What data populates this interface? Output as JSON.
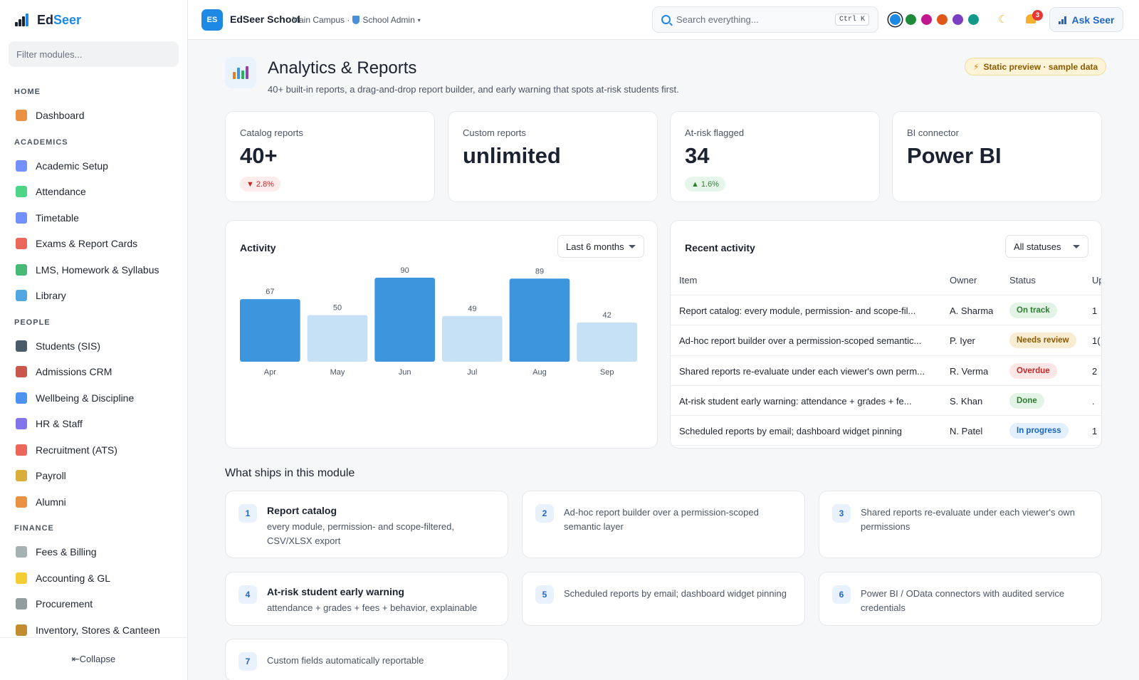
{
  "brand": {
    "name_a": "Ed",
    "name_b": "Seer"
  },
  "sidebar": {
    "filter_placeholder": "Filter modules...",
    "sections": [
      {
        "title": "HOME",
        "items": [
          {
            "label": "Dashboard",
            "icon": "house-icon",
            "color": "#e67e22"
          }
        ]
      },
      {
        "title": "ACADEMICS",
        "items": [
          {
            "label": "Academic Setup",
            "icon": "calendar-icon",
            "color": "#5c7cfa"
          },
          {
            "label": "Attendance",
            "icon": "check-box-icon",
            "color": "#2ecc71"
          },
          {
            "label": "Timetable",
            "icon": "schedule-icon",
            "color": "#5c7cfa"
          },
          {
            "label": "Exams & Report Cards",
            "icon": "memo-icon",
            "color": "#e74c3c"
          },
          {
            "label": "LMS, Homework & Syllabus",
            "icon": "books-icon",
            "color": "#27ae60"
          },
          {
            "label": "Library",
            "icon": "open-book-icon",
            "color": "#3498db"
          }
        ]
      },
      {
        "title": "PEOPLE",
        "items": [
          {
            "label": "Students (SIS)",
            "icon": "graduation-cap-icon",
            "color": "#2c3e50"
          },
          {
            "label": "Admissions CRM",
            "icon": "clipboard-icon",
            "color": "#c0392b"
          },
          {
            "label": "Wellbeing & Discipline",
            "icon": "heart-icon",
            "color": "#2f80ed"
          },
          {
            "label": "HR & Staff",
            "icon": "people-icon",
            "color": "#6c5ce7"
          },
          {
            "label": "Recruitment (ATS)",
            "icon": "magnet-icon",
            "color": "#e74c3c"
          },
          {
            "label": "Payroll",
            "icon": "money-bag-icon",
            "color": "#d4a017"
          },
          {
            "label": "Alumni",
            "icon": "medal-icon",
            "color": "#e67e22"
          }
        ]
      },
      {
        "title": "FINANCE",
        "items": [
          {
            "label": "Fees & Billing",
            "icon": "receipt-icon",
            "color": "#95a5a6"
          },
          {
            "label": "Accounting & GL",
            "icon": "ledger-icon",
            "color": "#f1c40f"
          },
          {
            "label": "Procurement",
            "icon": "cart-icon",
            "color": "#7f8c8d"
          },
          {
            "label": "Inventory, Stores & Canteen",
            "icon": "package-icon",
            "color": "#b9770e"
          }
        ]
      }
    ],
    "collapse_label": "⇤Collapse"
  },
  "topbar": {
    "org_initials": "ES",
    "org_name": "EdSeer School",
    "campus": "Main Campus ·",
    "role": "School Admin",
    "role_suffix": "▾",
    "search_placeholder": "Search everything...",
    "shortcut": "Ctrl K",
    "swatches": [
      "#1e88e5",
      "#1f8a3a",
      "#c2188f",
      "#e1561a",
      "#7b3fc4",
      "#13988a"
    ],
    "notification_count": "3",
    "ask_label": "Ask Seer"
  },
  "page": {
    "title": "Analytics & Reports",
    "subtitle": "40+ built-in reports, a drag-and-drop report builder, and early warning that spots at-risk students first.",
    "preview_label": "Static preview · sample data"
  },
  "kpis": [
    {
      "label": "Catalog reports",
      "value": "40+",
      "delta": "2.8%",
      "direction": "down"
    },
    {
      "label": "Custom reports",
      "value": "unlimited"
    },
    {
      "label": "At-risk flagged",
      "value": "34",
      "delta": "1.6%",
      "direction": "up"
    },
    {
      "label": "BI connector",
      "value": "Power BI"
    }
  ],
  "activity": {
    "title": "Activity",
    "range_label": "Last 6 months"
  },
  "chart_data": {
    "type": "bar",
    "categories": [
      "Apr",
      "May",
      "Jun",
      "Jul",
      "Aug",
      "Sep"
    ],
    "values": [
      67,
      50,
      90,
      49,
      89,
      42
    ],
    "highlight": [
      true,
      false,
      true,
      false,
      true,
      false
    ],
    "colors": {
      "highlight": "#3d95de",
      "muted": "#c6e0f5"
    },
    "ylim": [
      0,
      90
    ],
    "title": "Activity",
    "xlabel": "",
    "ylabel": ""
  },
  "recent": {
    "title": "Recent activity",
    "filter_label": "All statuses",
    "columns": [
      "Item",
      "Owner",
      "Status",
      "Up"
    ],
    "rows": [
      {
        "item": "Report catalog: every module, permission- and scope-fil...",
        "owner": "A. Sharma",
        "status": "On track",
        "status_bg": "#e3f4e6",
        "status_fg": "#2e7d32",
        "up": "1"
      },
      {
        "item": "Ad-hoc report builder over a permission-scoped semantic...",
        "owner": "P. Iyer",
        "status": "Needs review",
        "status_bg": "#f8ecd3",
        "status_fg": "#8a5b00",
        "up": "1("
      },
      {
        "item": "Shared reports re-evaluate under each viewer's own perm...",
        "owner": "R. Verma",
        "status": "Overdue",
        "status_bg": "#fde6e6",
        "status_fg": "#c62828",
        "up": "2"
      },
      {
        "item": "At-risk student early warning: attendance + grades + fe...",
        "owner": "S. Khan",
        "status": "Done",
        "status_bg": "#e3f4e6",
        "status_fg": "#2e7d32",
        "up": "."
      },
      {
        "item": "Scheduled reports by email; dashboard widget pinning",
        "owner": "N. Patel",
        "status": "In progress",
        "status_bg": "#e3f0fc",
        "status_fg": "#1565c0",
        "up": "1"
      }
    ]
  },
  "features": {
    "title": "What ships in this module",
    "items": [
      {
        "num": "1",
        "title": "Report catalog",
        "desc": "every module, permission- and scope-filtered, CSV/XLSX export"
      },
      {
        "num": "2",
        "title": "",
        "desc": "Ad-hoc report builder over a permission-scoped semantic layer"
      },
      {
        "num": "3",
        "title": "",
        "desc": "Shared reports re-evaluate under each viewer's own permissions"
      },
      {
        "num": "4",
        "title": "At-risk student early warning",
        "desc": "attendance + grades + fees + behavior, explainable"
      },
      {
        "num": "5",
        "title": "",
        "desc": "Scheduled reports by email; dashboard widget pinning"
      },
      {
        "num": "6",
        "title": "",
        "desc": "Power BI / OData connectors with audited service credentials"
      },
      {
        "num": "7",
        "title": "",
        "desc": "Custom fields automatically reportable"
      }
    ]
  }
}
